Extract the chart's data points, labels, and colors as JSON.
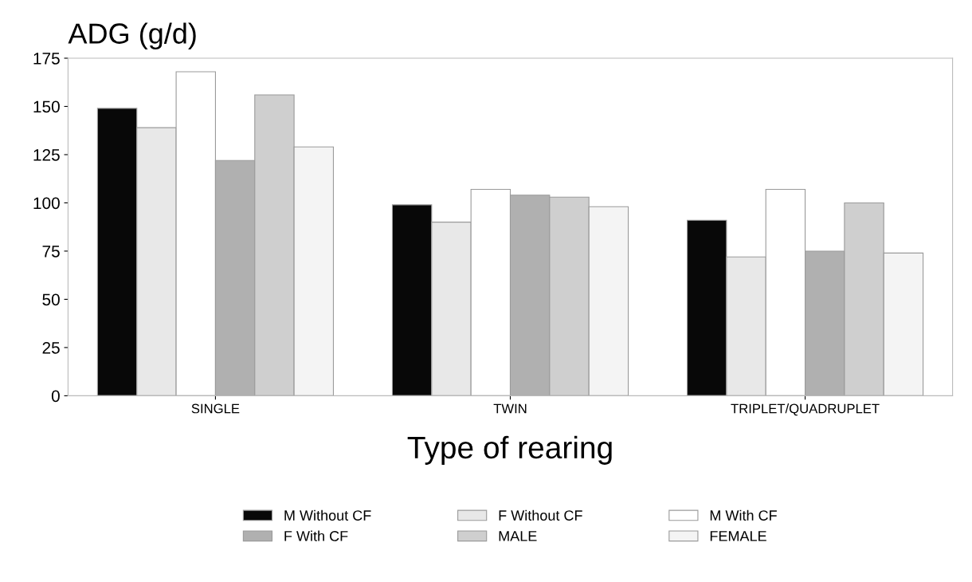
{
  "chart_data": {
    "type": "bar",
    "ylabel": "ADG (g/d)",
    "xlabel": "Type of rearing",
    "categories": [
      "SINGLE",
      "TWIN",
      "TRIPLET/QUADRUPLET"
    ],
    "series": [
      {
        "name": "M Without CF",
        "color": "#080808",
        "values": [
          149,
          99,
          91
        ]
      },
      {
        "name": "F Without CF",
        "color": "#e8e8e8",
        "values": [
          139,
          90,
          72
        ]
      },
      {
        "name": "M With CF",
        "color": "#ffffff",
        "values": [
          168,
          107,
          107
        ]
      },
      {
        "name": "F With CF",
        "color": "#b0b0b0",
        "values": [
          122,
          104,
          75
        ]
      },
      {
        "name": "MALE",
        "color": "#cfcfcf",
        "values": [
          156,
          103,
          100
        ]
      },
      {
        "name": "FEMALE",
        "color": "#f4f4f4",
        "values": [
          129,
          98,
          74
        ]
      }
    ],
    "ylim": [
      0,
      175
    ],
    "yticks": [
      0,
      25,
      50,
      75,
      100,
      125,
      150,
      175
    ],
    "grid": false,
    "legend": "bottom"
  }
}
